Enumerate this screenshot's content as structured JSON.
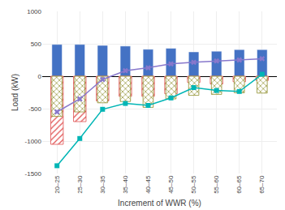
{
  "chart_data": {
    "type": "bar",
    "categories": [
      "20–25",
      "25–30",
      "30–35",
      "35–40",
      "40–45",
      "45–50",
      "50–55",
      "55–60",
      "60–65",
      "65–70"
    ],
    "series": [
      {
        "type": "bar",
        "color": "#4472C4",
        "values": [
          490,
          490,
          475,
          465,
          415,
          430,
          375,
          385,
          410,
          410
        ]
      },
      {
        "type": "bar",
        "color": "#E05050",
        "values": [
          -1050,
          -700,
          -380,
          -310,
          -310,
          -270,
          -95,
          -120,
          -85,
          -65
        ]
      },
      {
        "type": "bar",
        "color": "#909030",
        "values": [
          -620,
          -550,
          -410,
          -390,
          -480,
          -350,
          -295,
          -280,
          -255,
          -260
        ]
      },
      {
        "type": "line",
        "color": "#00B5B5",
        "marker": "square",
        "values": [
          -1380,
          -960,
          -510,
          -420,
          -450,
          -335,
          -175,
          -220,
          -235,
          30
        ]
      },
      {
        "type": "line",
        "color": "#8878CC",
        "marker": "x",
        "values": [
          -550,
          -350,
          -50,
          85,
          130,
          190,
          215,
          235,
          250,
          270
        ]
      }
    ],
    "xlabel": "Increment of WWR (%)",
    "ylabel": "Load (kW)",
    "ylim": [
      -1500,
      1000
    ],
    "yticks": [
      -1500,
      -1000,
      -500,
      0,
      500,
      1000
    ],
    "grid": true
  }
}
